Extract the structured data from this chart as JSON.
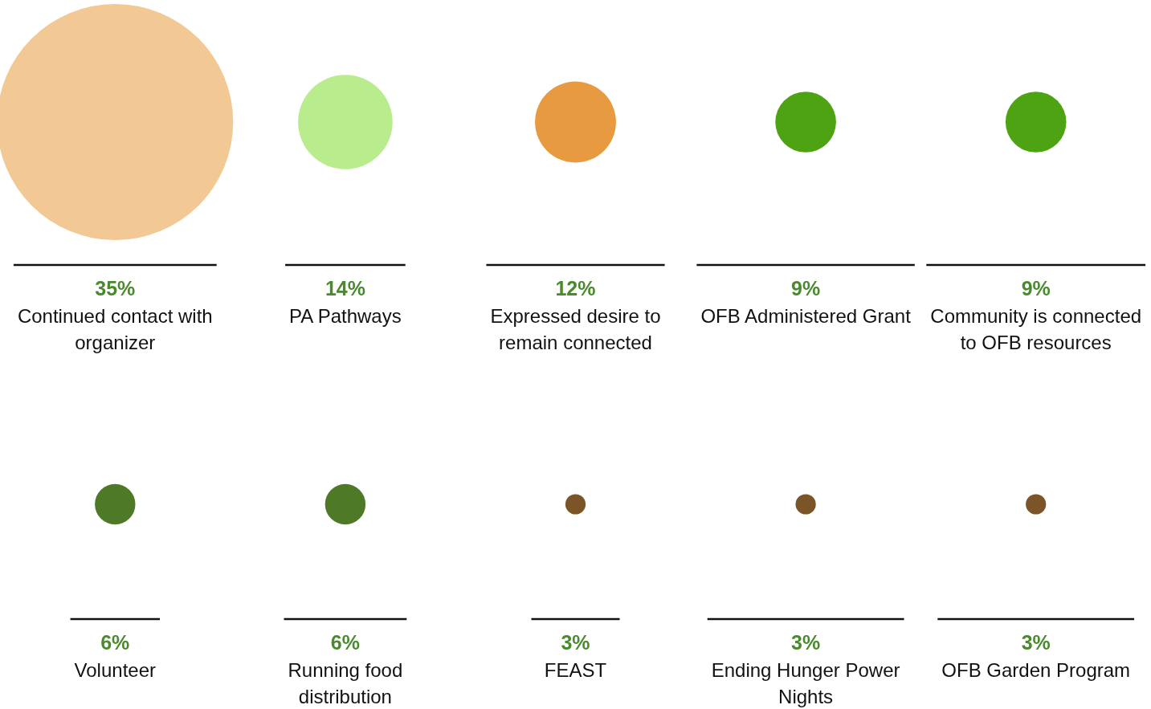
{
  "chart_data": {
    "type": "other",
    "categories": [
      "Continued contact with organizer",
      "PA Pathways",
      "Expressed desire to remain connected",
      "OFB Administered Grant",
      "Community is connected to OFB resources",
      "Volunteer",
      "Running food distribution",
      "FEAST",
      "Ending Hunger Power Nights",
      "OFB Garden Program"
    ],
    "values": [
      35,
      14,
      12,
      9,
      9,
      6,
      6,
      3,
      3,
      3
    ],
    "colors": [
      "#f2c994",
      "#b9ec8c",
      "#e79a3f",
      "#4da311",
      "#4da311",
      "#4e7a27",
      "#4e7a27",
      "#7b5427",
      "#7b5427",
      "#7b5427"
    ],
    "value_labels": [
      "35%",
      "14%",
      "12%",
      "9%",
      "9%",
      "6%",
      "6%",
      "3%",
      "3%",
      "3%"
    ]
  }
}
